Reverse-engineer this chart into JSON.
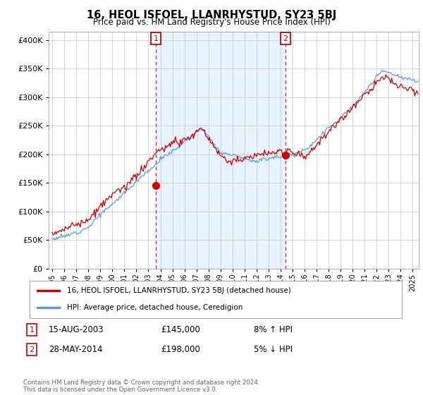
{
  "title": "16, HEOL ISFOEL, LLANRHYSTUD, SY23 5BJ",
  "subtitle": "Price paid vs. HM Land Registry's House Price Index (HPI)",
  "ytick_values": [
    0,
    50000,
    100000,
    150000,
    200000,
    250000,
    300000,
    350000,
    400000
  ],
  "ylim": [
    0,
    415000
  ],
  "xlim_start": 1994.7,
  "xlim_end": 2025.5,
  "sale1_x": 2003.62,
  "sale1_y": 145000,
  "sale1_label": "1",
  "sale1_date": "15-AUG-2003",
  "sale1_price": "£145,000",
  "sale1_hpi": "8% ↑ HPI",
  "sale2_x": 2014.41,
  "sale2_y": 198000,
  "sale2_label": "2",
  "sale2_date": "28-MAY-2014",
  "sale2_price": "£198,000",
  "sale2_hpi": "5% ↓ HPI",
  "line_color_red": "#cc0000",
  "line_color_blue": "#5b9bd5",
  "shade_color": "#ddeeff",
  "grid_color": "#cccccc",
  "bg_color": "#ffffff",
  "footnote": "Contains HM Land Registry data © Crown copyright and database right 2024.\nThis data is licensed under the Open Government Licence v3.0.",
  "legend_label_red": "16, HEOL ISFOEL, LLANRHYSTUD, SY23 5BJ (detached house)",
  "legend_label_blue": "HPI: Average price, detached house, Ceredigion"
}
